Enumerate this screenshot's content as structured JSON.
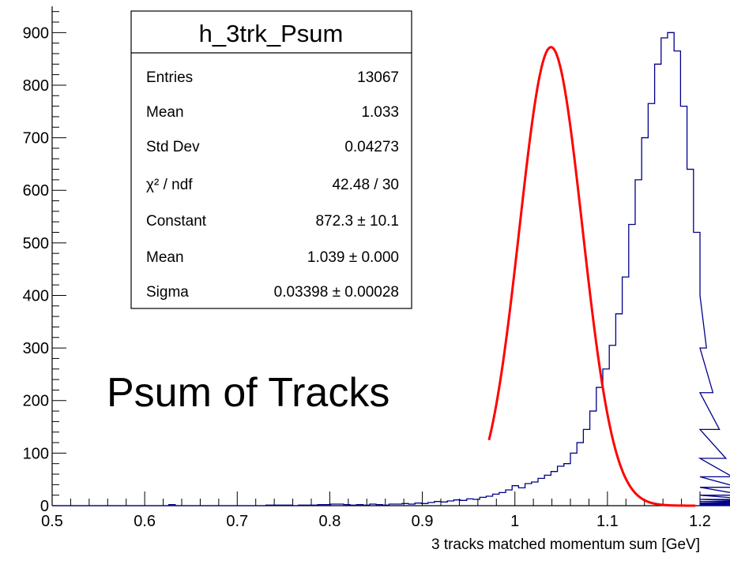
{
  "chart_data": {
    "type": "bar",
    "histogram_name": "h_3trk_Psum",
    "xlabel": "3 tracks matched momentum sum [GeV]",
    "ylabel": "",
    "xlim": [
      0.5,
      1.2
    ],
    "ylim": [
      0,
      950
    ],
    "x_ticks": [
      "0.5",
      "0.6",
      "0.7",
      "0.8",
      "0.9",
      "1",
      "1.1",
      "1.2"
    ],
    "y_ticks": [
      "0",
      "100",
      "200",
      "300",
      "400",
      "500",
      "600",
      "700",
      "800",
      "900"
    ],
    "annotation": "Psum of Tracks",
    "bin_width": 0.007,
    "bin_counts": [
      0,
      0,
      0,
      0,
      0,
      0,
      0,
      0,
      0,
      0,
      0,
      0,
      0,
      0,
      0,
      0,
      0,
      0,
      2,
      0,
      0,
      0,
      0,
      0,
      0,
      0,
      0,
      0,
      0,
      0,
      0,
      0,
      0,
      1,
      1,
      1,
      1,
      0,
      1,
      1,
      1,
      2,
      2,
      3,
      3,
      2,
      1,
      2,
      1,
      3,
      2,
      1,
      3,
      3,
      4,
      3,
      5,
      4,
      6,
      8,
      7,
      9,
      11,
      10,
      13,
      12,
      16,
      18,
      22,
      25,
      30,
      38,
      34,
      42,
      45,
      52,
      58,
      65,
      75,
      80,
      100,
      120,
      145,
      180,
      225,
      260,
      305,
      365,
      435,
      535,
      620,
      700,
      765,
      840,
      890,
      900,
      865,
      760,
      640,
      520,
      400,
      300,
      215,
      145,
      90,
      55,
      35,
      20,
      12,
      8,
      5,
      3,
      2,
      2,
      1,
      1,
      1,
      0,
      0,
      0
    ],
    "series": [
      {
        "name": "Histogram",
        "color": "#00008b"
      },
      {
        "name": "Gaussian fit",
        "color": "#ff0000",
        "fit_range": [
          0.972,
          1.195
        ],
        "constant": 872.3,
        "mean": 1.039,
        "sigma": 0.03398
      }
    ],
    "grid": false,
    "legend": "none"
  },
  "stats_box": {
    "title": "h_3trk_Psum",
    "rows": [
      {
        "label": "Entries",
        "value": "13067"
      },
      {
        "label": "Mean",
        "value": "1.033"
      },
      {
        "label": "Std Dev",
        "value": "0.04273"
      },
      {
        "label": "χ² / ndf",
        "value": "42.48 / 30"
      },
      {
        "label": "Constant",
        "value": "872.3 ± 10.1"
      },
      {
        "label": "Mean",
        "value": "1.039 ± 0.000"
      },
      {
        "label": "Sigma",
        "value": "0.03398 ± 0.00028"
      }
    ]
  }
}
